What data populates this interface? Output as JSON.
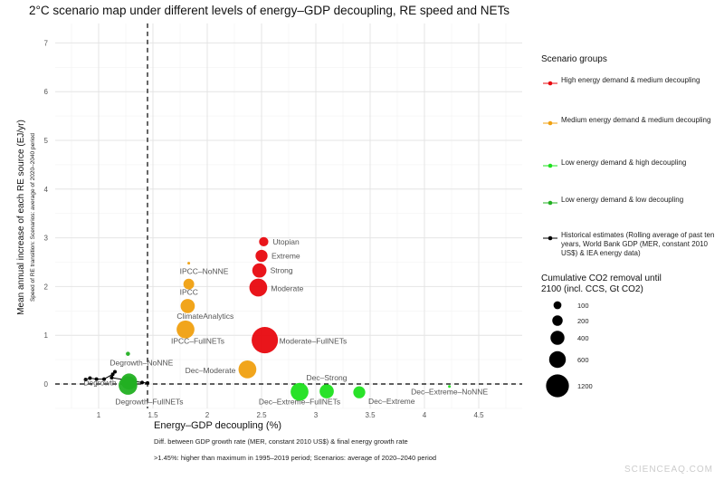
{
  "chart_data": {
    "type": "scatter",
    "title": "2°C scenario map under different levels of energy–GDP decoupling, RE speed and NETs",
    "xlabel": "Energy–GDP decoupling (%)",
    "xlabel_notes": [
      "Diff. between GDP growth rate (MER, constant 2010 US$) & final energy growth rate",
      ">1.45%: higher than maximum in 1995–2019 period; Scenarios: average of 2020–2040 period"
    ],
    "ylabel": "Mean annual increase of each RE source (EJ/yr)",
    "ylabel_note": "Speed of RE transition: Scenarios: average of 2020–2040 period",
    "xlim": [
      0.6,
      4.9
    ],
    "ylim": [
      -0.5,
      7.4
    ],
    "xticks": [
      1,
      1.5,
      2,
      2.5,
      3,
      3.5,
      4,
      4.5
    ],
    "yticks": [
      0,
      1,
      2,
      3,
      4,
      5,
      6,
      7
    ],
    "grid": true,
    "reference_lines": {
      "x": 1.45,
      "y": 0
    },
    "legend_position": "right",
    "groups": [
      {
        "name": "High energy demand & medium decoupling",
        "color": "#e8080f"
      },
      {
        "name": "Medium energy demand & medium decoupling",
        "color": "#f0a010"
      },
      {
        "name": "Low energy demand & high decoupling",
        "color": "#1ee01e"
      },
      {
        "name": "Low energy demand & low decoupling",
        "color": "#22b022"
      },
      {
        "name": "Historical estimates (Rolling average of past ten years, World Bank GDP (MER, constant 2010 US$) & IEA energy data)",
        "color": "#000000"
      }
    ],
    "size_legend": {
      "title": "Cumulative CO2 removal until 2100 (incl. CCS, Gt CO2)",
      "values": [
        100,
        200,
        400,
        600,
        1200
      ]
    },
    "points": [
      {
        "label": "Utopian",
        "group": 0,
        "x": 2.52,
        "y": 2.92,
        "size": 150
      },
      {
        "label": "Extreme",
        "group": 0,
        "x": 2.5,
        "y": 2.63,
        "size": 250
      },
      {
        "label": "Strong",
        "group": 0,
        "x": 2.48,
        "y": 2.33,
        "size": 350
      },
      {
        "label": "Moderate",
        "group": 0,
        "x": 2.47,
        "y": 1.98,
        "size": 550
      },
      {
        "label": "Moderate–FullNETs",
        "group": 0,
        "x": 2.53,
        "y": 0.9,
        "size": 1200
      },
      {
        "label": "IPCC–NoNNE",
        "group": 1,
        "x": 1.83,
        "y": 2.48,
        "size": 5
      },
      {
        "label": "IPCC",
        "group": 1,
        "x": 1.83,
        "y": 2.05,
        "size": 200
      },
      {
        "label": "ClimateAnalytics",
        "group": 1,
        "x": 1.82,
        "y": 1.6,
        "size": 350
      },
      {
        "label": "IPCC–FullNETs",
        "group": 1,
        "x": 1.8,
        "y": 1.12,
        "size": 550
      },
      {
        "label": "Dec–Moderate",
        "group": 1,
        "x": 2.37,
        "y": 0.3,
        "size": 550
      },
      {
        "label": "Dec–Extreme–FullNETs",
        "group": 2,
        "x": 2.85,
        "y": -0.16,
        "size": 550
      },
      {
        "label": "Dec–Strong",
        "group": 2,
        "x": 3.1,
        "y": -0.15,
        "size": 350
      },
      {
        "label": "Dec–Extreme",
        "group": 2,
        "x": 3.4,
        "y": -0.17,
        "size": 250
      },
      {
        "label": "Dec–Extreme–NoNNE",
        "group": 2,
        "x": 4.23,
        "y": -0.05,
        "size": 5
      },
      {
        "label": "Degrowth–NoNNE",
        "group": 3,
        "x": 1.27,
        "y": 0.62,
        "size": 30
      },
      {
        "label": "Degrowth",
        "group": 3,
        "x": 1.28,
        "y": 0.05,
        "size": 450
      },
      {
        "label": "Degrowth–FullNETs",
        "group": 3,
        "x": 1.27,
        "y": -0.03,
        "size": 600
      }
    ],
    "historical": [
      [
        0.88,
        0.09
      ],
      [
        0.92,
        0.12
      ],
      [
        0.98,
        0.1
      ],
      [
        1.05,
        0.1
      ],
      [
        1.13,
        0.2
      ],
      [
        1.15,
        0.25
      ],
      [
        1.12,
        0.13
      ],
      [
        1.4,
        0.03
      ],
      [
        1.45,
        0.02
      ]
    ]
  },
  "watermark": "SCIENCEAQ.COM"
}
